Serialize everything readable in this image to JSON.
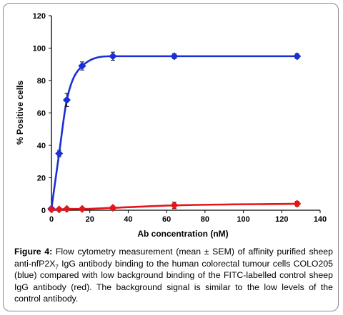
{
  "chart_data": {
    "type": "line",
    "xlabel": "Ab concentration (nM)",
    "ylabel": "% Positive cells",
    "xlim": [
      0,
      140
    ],
    "ylim": [
      0,
      120
    ],
    "xticks": [
      0,
      20,
      40,
      60,
      80,
      100,
      120,
      140
    ],
    "yticks": [
      0,
      20,
      40,
      60,
      80,
      100,
      120
    ],
    "grid": false,
    "series": [
      {
        "color": "#1a2fd6",
        "marker": "diamond",
        "x": [
          0,
          4,
          8,
          16,
          32,
          64,
          128
        ],
        "y": [
          1,
          35,
          68,
          89,
          95,
          95,
          95
        ],
        "err": [
          0.5,
          2,
          4,
          2.5,
          2.5,
          1.5,
          1.5
        ]
      },
      {
        "color": "#e4161b",
        "marker": "diamond",
        "x": [
          0,
          4,
          8,
          16,
          32,
          64,
          128
        ],
        "y": [
          0.5,
          0.5,
          0.8,
          0.8,
          1.5,
          3,
          4
        ],
        "err": [
          0.3,
          0.3,
          0.5,
          0.5,
          1,
          2,
          1.5
        ]
      }
    ]
  },
  "caption": {
    "label": "Figure 4:",
    "text_before_sub": " Flow cytometry measurement (mean ± SEM) of affinity purified sheep anti-nfP2X",
    "sub": "7",
    "text_after_sub": " IgG antibody binding to the human colorectal tumour cells COLO205 (blue) compared with low background binding of the FITC-labelled control sheep IgG antibody (red). The background signal is similar to the low levels of the control antibody."
  }
}
